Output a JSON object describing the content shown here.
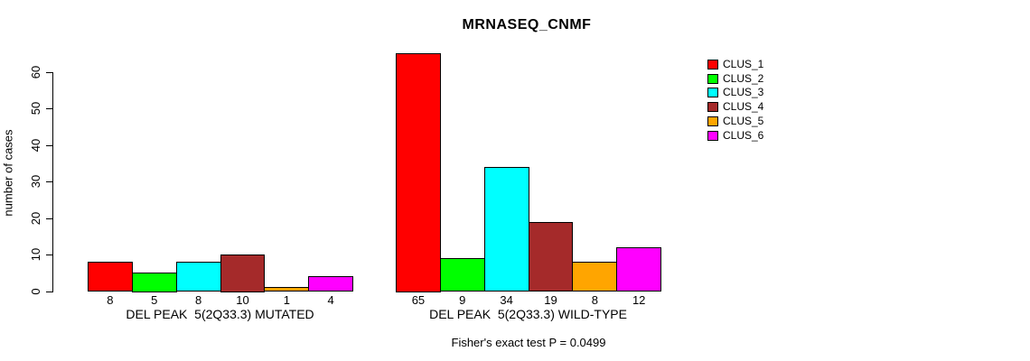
{
  "chart_data": {
    "type": "bar",
    "title": "MRNASEQ_CNMF",
    "xlabel": "",
    "ylabel": "number of cases",
    "ylim": [
      0,
      65
    ],
    "yticks": [
      0,
      10,
      20,
      30,
      40,
      50,
      60
    ],
    "grid": false,
    "legend_position": "top-right",
    "categories": [
      "CLUS_1",
      "CLUS_2",
      "CLUS_3",
      "CLUS_4",
      "CLUS_5",
      "CLUS_6"
    ],
    "bar_colors": [
      "#FF0000",
      "#00FF00",
      "#00FFFF",
      "#A52A2A",
      "#FFA500",
      "#FF00FF"
    ],
    "legend": [
      {
        "label": "CLUS_1",
        "color": "#FF0000"
      },
      {
        "label": "CLUS_2",
        "color": "#00FF00"
      },
      {
        "label": "CLUS_3",
        "color": "#00FFFF"
      },
      {
        "label": "CLUS_4",
        "color": "#A52A2A"
      },
      {
        "label": "CLUS_5",
        "color": "#FFA500"
      },
      {
        "label": "CLUS_6",
        "color": "#FF00FF"
      }
    ],
    "groups": [
      {
        "label": "DEL PEAK  5(2Q33.3) MUTATED",
        "values": [
          8,
          5,
          8,
          10,
          1,
          4
        ]
      },
      {
        "label": "DEL PEAK  5(2Q33.3) WILD-TYPE",
        "values": [
          65,
          9,
          34,
          19,
          8,
          12
        ]
      }
    ],
    "annotation": "Fisher's exact test P = 0.0499"
  }
}
